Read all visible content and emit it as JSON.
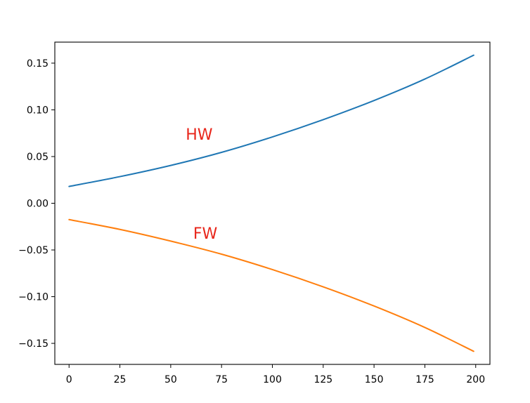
{
  "chart_data": {
    "type": "line",
    "title": "",
    "xlabel": "",
    "ylabel": "",
    "xlim": [
      -7,
      207
    ],
    "ylim": [
      -0.1725,
      0.1725
    ],
    "grid": false,
    "x_ticks": [
      0,
      25,
      50,
      75,
      100,
      125,
      150,
      175,
      200
    ],
    "x_tick_labels": [
      "0",
      "25",
      "50",
      "75",
      "100",
      "125",
      "150",
      "175",
      "200"
    ],
    "y_ticks": [
      0.15,
      0.1,
      0.05,
      0.0,
      -0.05,
      -0.1,
      -0.15
    ],
    "y_tick_labels": [
      "0.15",
      "0.10",
      "0.05",
      "0.00",
      "−0.05",
      "−0.10",
      "−0.15"
    ],
    "x": [
      0,
      25,
      50,
      75,
      100,
      125,
      150,
      175,
      199
    ],
    "series": [
      {
        "color": "#1f77b4",
        "values": [
          0.018,
          0.0285,
          0.0405,
          0.0545,
          0.071,
          0.0895,
          0.11,
          0.133,
          0.1585
        ]
      },
      {
        "color": "#ff7f0e",
        "values": [
          -0.0175,
          -0.028,
          -0.0405,
          -0.0545,
          -0.071,
          -0.0895,
          -0.11,
          -0.133,
          -0.1585
        ]
      }
    ],
    "annotations": [
      {
        "text": "HW",
        "x": 64,
        "y": 0.068,
        "color": "#e8261b"
      },
      {
        "text": "FW",
        "x": 67,
        "y": -0.038,
        "color": "#e8261b"
      }
    ]
  }
}
